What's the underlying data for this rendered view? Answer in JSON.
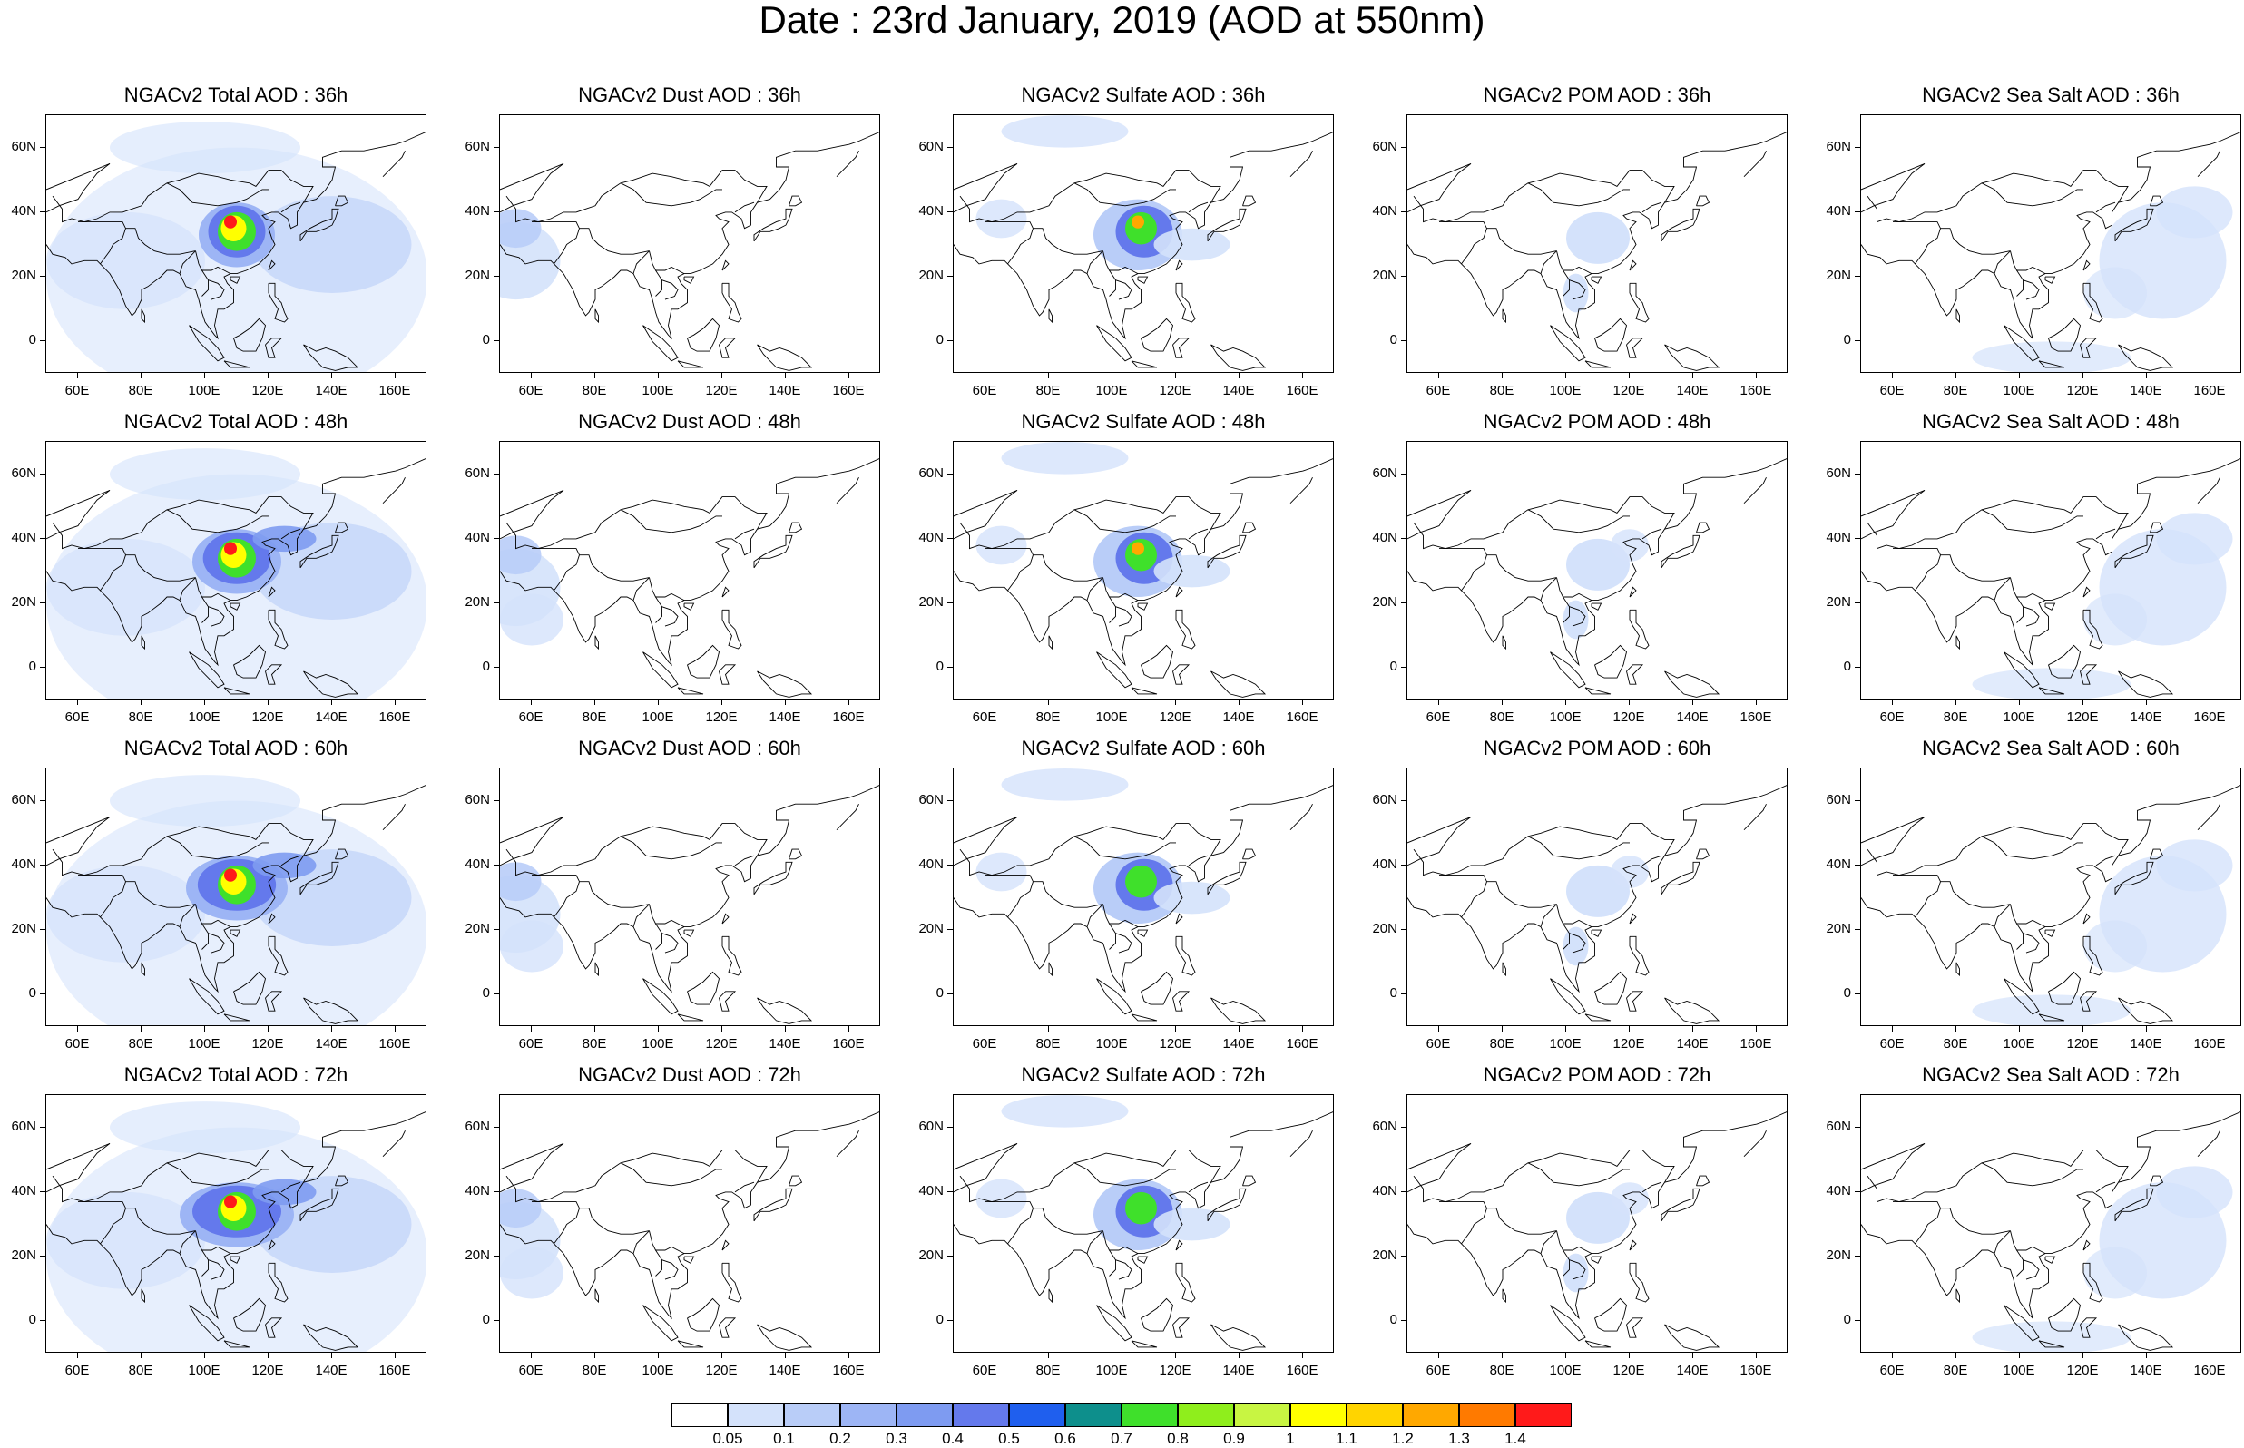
{
  "title": "Date : 23rd January, 2019 (AOD at 550nm)",
  "panels": [
    {
      "title": "NGACv2 Total AOD : 36h",
      "species": "total",
      "hour": 36
    },
    {
      "title": "NGACv2 Dust AOD : 36h",
      "species": "dust",
      "hour": 36
    },
    {
      "title": "NGACv2 Sulfate AOD : 36h",
      "species": "sulfate",
      "hour": 36
    },
    {
      "title": "NGACv2 POM AOD : 36h",
      "species": "pom",
      "hour": 36
    },
    {
      "title": "NGACv2 Sea Salt AOD : 36h",
      "species": "seasalt",
      "hour": 36
    },
    {
      "title": "NGACv2 Total AOD : 48h",
      "species": "total",
      "hour": 48
    },
    {
      "title": "NGACv2 Dust AOD : 48h",
      "species": "dust",
      "hour": 48
    },
    {
      "title": "NGACv2 Sulfate AOD : 48h",
      "species": "sulfate",
      "hour": 48
    },
    {
      "title": "NGACv2 POM AOD : 48h",
      "species": "pom",
      "hour": 48
    },
    {
      "title": "NGACv2 Sea Salt AOD : 48h",
      "species": "seasalt",
      "hour": 48
    },
    {
      "title": "NGACv2 Total AOD : 60h",
      "species": "total",
      "hour": 60
    },
    {
      "title": "NGACv2 Dust AOD : 60h",
      "species": "dust",
      "hour": 60
    },
    {
      "title": "NGACv2 Sulfate AOD : 60h",
      "species": "sulfate",
      "hour": 60
    },
    {
      "title": "NGACv2 POM AOD : 60h",
      "species": "pom",
      "hour": 60
    },
    {
      "title": "NGACv2 Sea Salt AOD : 60h",
      "species": "seasalt",
      "hour": 60
    },
    {
      "title": "NGACv2 Total AOD : 72h",
      "species": "total",
      "hour": 72
    },
    {
      "title": "NGACv2 Dust AOD : 72h",
      "species": "dust",
      "hour": 72
    },
    {
      "title": "NGACv2 Sulfate AOD : 72h",
      "species": "sulfate",
      "hour": 72
    },
    {
      "title": "NGACv2 POM AOD : 72h",
      "species": "pom",
      "hour": 72
    },
    {
      "title": "NGACv2 Sea Salt  AOD : 72h",
      "species": "seasalt",
      "hour": 72
    }
  ],
  "lat_ticks": [
    "60N",
    "40N",
    "20N",
    "0"
  ],
  "lon_ticks": [
    "60E",
    "80E",
    "100E",
    "120E",
    "140E",
    "160E"
  ],
  "colorbar": {
    "colors": [
      "#ffffff",
      "#d4e2fb",
      "#b9cdf8",
      "#9db5f5",
      "#7e9bf1",
      "#6479ec",
      "#1f5fee",
      "#0d8f8c",
      "#3fe02b",
      "#8fee1c",
      "#c8f542",
      "#ffff00",
      "#ffd400",
      "#ffa800",
      "#ff7a00",
      "#ff1a1a"
    ],
    "labels": [
      "0.05",
      "0.1",
      "0.2",
      "0.3",
      "0.4",
      "0.5",
      "0.6",
      "0.7",
      "0.8",
      "0.9",
      "1",
      "1.1",
      "1.2",
      "1.3",
      "1.4"
    ]
  }
}
